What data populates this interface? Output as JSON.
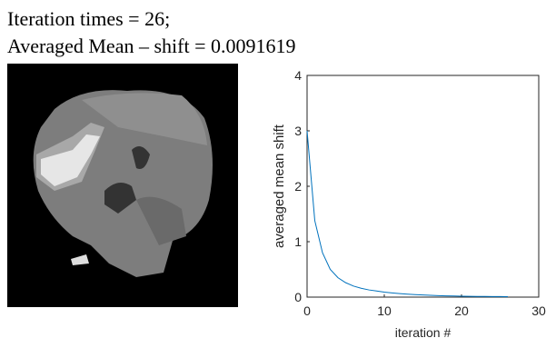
{
  "caption": [
    "Iteration times = 26;",
    "Averaged Mean – shift = 0.0091619"
  ],
  "chart_data": {
    "type": "line",
    "xlabel": "iteration #",
    "ylabel": "averaged mean shift",
    "x": [
      0,
      1,
      2,
      3,
      4,
      5,
      6,
      7,
      8,
      9,
      10,
      11,
      12,
      13,
      14,
      15,
      16,
      17,
      18,
      19,
      20,
      21,
      22,
      23,
      24,
      25,
      26
    ],
    "series": [
      {
        "color": "#0072bd",
        "values": [
          3.0,
          1.38,
          0.8,
          0.5,
          0.35,
          0.26,
          0.2,
          0.16,
          0.13,
          0.11,
          0.09,
          0.075,
          0.063,
          0.053,
          0.045,
          0.038,
          0.032,
          0.027,
          0.023,
          0.02,
          0.017,
          0.015,
          0.013,
          0.012,
          0.011,
          0.01,
          0.0091619
        ]
      }
    ],
    "xlim": [
      0,
      30
    ],
    "ylim": [
      0,
      4
    ],
    "xticks": [
      0,
      10,
      20,
      30
    ],
    "yticks": [
      0,
      1,
      2,
      3,
      4
    ]
  }
}
